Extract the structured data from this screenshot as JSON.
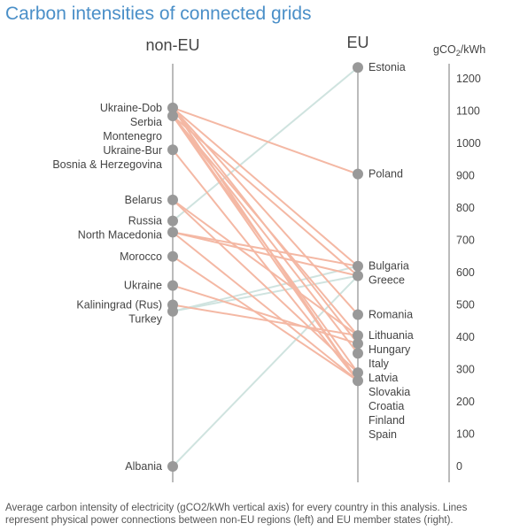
{
  "title": "Carbon intensities of connected grids",
  "caption": "Average carbon intensity of electricity (gCO2/kWh vertical axis) for every country in this analysis. Lines represent physical power connections between non-EU regions (left) and EU member states (right).",
  "chart_data": {
    "type": "slope",
    "left_header": "non-EU",
    "right_header": "EU",
    "unit_label": {
      "prefix": "gCO",
      "subscript": "2",
      "suffix": "/kWh"
    },
    "ylim": [
      0,
      1250
    ],
    "ticks": [
      0,
      100,
      200,
      300,
      400,
      500,
      600,
      700,
      800,
      900,
      1000,
      1100,
      1200
    ],
    "grid": false,
    "colors": {
      "interconnector_high": "#f4b8a4",
      "interconnector_low": "#cfe3df",
      "dot": "#999999",
      "axis": "#bbbbbb",
      "title": "#4a8fc8"
    },
    "left": [
      {
        "name": "Ukraine-Dob",
        "value": 1110,
        "dot": false
      },
      {
        "name": "Serbia",
        "value": 1110
      },
      {
        "name": "Montenegro",
        "value": 1085
      },
      {
        "name": "Ukraine-Bur",
        "value": 1085,
        "dot": false
      },
      {
        "name": "Bosnia & Herzegovina",
        "value": 980
      },
      {
        "name": "Belarus",
        "value": 825
      },
      {
        "name": "Russia",
        "value": 760
      },
      {
        "name": "North Macedonia",
        "value": 725
      },
      {
        "name": "Morocco",
        "value": 650
      },
      {
        "name": "Ukraine",
        "value": 560
      },
      {
        "name": "Kaliningrad (Rus)",
        "value": 500
      },
      {
        "name": "Turkey",
        "value": 480
      },
      {
        "name": "Albania",
        "value": 0
      }
    ],
    "right": [
      {
        "name": "Estonia",
        "value": 1235
      },
      {
        "name": "Poland",
        "value": 905
      },
      {
        "name": "Bulgaria",
        "value": 620
      },
      {
        "name": "Greece",
        "value": 590
      },
      {
        "name": "Romania",
        "value": 470
      },
      {
        "name": "Lithuania",
        "value": 405
      },
      {
        "name": "Hungary",
        "value": 380
      },
      {
        "name": "Italy",
        "value": 350
      },
      {
        "name": "Latvia",
        "value": 290
      },
      {
        "name": "Slovakia",
        "value": 265
      },
      {
        "name": "Croatia",
        "value": 265,
        "dot": false
      },
      {
        "name": "Finland",
        "value": 265,
        "dot": false
      },
      {
        "name": "Spain",
        "value": 265,
        "dot": false
      }
    ],
    "connections": [
      {
        "from": "Serbia",
        "to": "Poland"
      },
      {
        "from": "Serbia",
        "to": "Bulgaria"
      },
      {
        "from": "Serbia",
        "to": "Romania"
      },
      {
        "from": "Serbia",
        "to": "Hungary"
      },
      {
        "from": "Serbia",
        "to": "Slovakia"
      },
      {
        "from": "Montenegro",
        "to": "Greece"
      },
      {
        "from": "Montenegro",
        "to": "Lithuania"
      },
      {
        "from": "Montenegro",
        "to": "Italy"
      },
      {
        "from": "Montenegro",
        "to": "Latvia"
      },
      {
        "from": "Montenegro",
        "to": "Slovakia"
      },
      {
        "from": "Bosnia & Herzegovina",
        "to": "Slovakia"
      },
      {
        "from": "Belarus",
        "to": "Lithuania"
      },
      {
        "from": "Belarus",
        "to": "Latvia"
      },
      {
        "from": "Russia",
        "to": "Estonia"
      },
      {
        "from": "North Macedonia",
        "to": "Bulgaria"
      },
      {
        "from": "North Macedonia",
        "to": "Greece"
      },
      {
        "from": "North Macedonia",
        "to": "Slovakia"
      },
      {
        "from": "Morocco",
        "to": "Slovakia"
      },
      {
        "from": "Ukraine",
        "to": "Hungary"
      },
      {
        "from": "Kaliningrad (Rus)",
        "to": "Lithuania"
      },
      {
        "from": "Turkey",
        "to": "Bulgaria"
      },
      {
        "from": "Turkey",
        "to": "Greece"
      },
      {
        "from": "Albania",
        "to": "Greece"
      }
    ]
  }
}
